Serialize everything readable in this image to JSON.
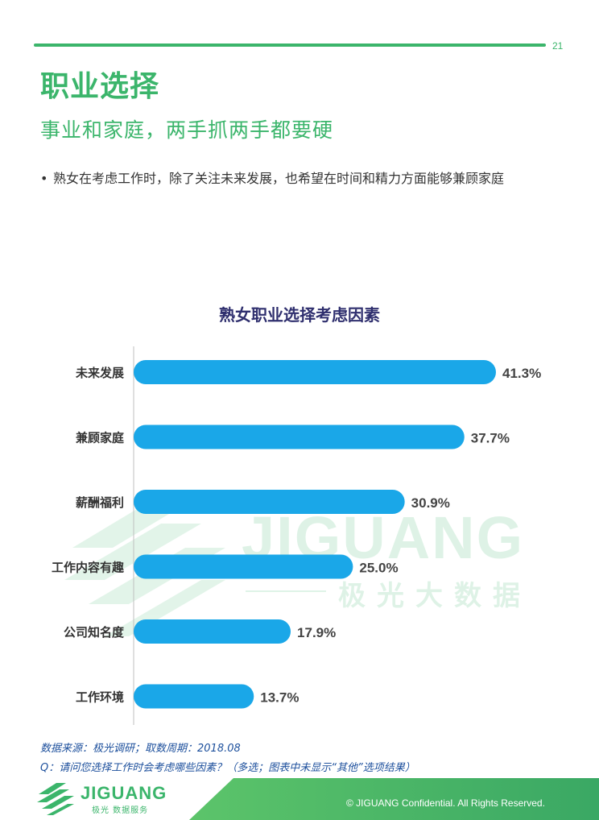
{
  "page": {
    "number": "21",
    "title": "职业选择",
    "subtitle": "事业和家庭，两手抓两手都要硬",
    "bullet": "熟女在考虑工作时，除了关注未来发展，也希望在时间和精力方面能够兼顾家庭"
  },
  "watermark": {
    "brand": "JIGUANG",
    "sub": "极光大数据"
  },
  "chart_data": {
    "type": "bar",
    "orientation": "horizontal",
    "title": "熟女职业选择考虑因素",
    "categories": [
      "未来发展",
      "兼顾家庭",
      "薪酬福利",
      "工作内容有趣",
      "公司知名度",
      "工作环境"
    ],
    "values": [
      41.3,
      37.7,
      30.9,
      25.0,
      17.9,
      13.7
    ],
    "value_labels": [
      "41.3%",
      "37.7%",
      "30.9%",
      "25.0%",
      "17.9%",
      "13.7%"
    ],
    "xlim": [
      0,
      41.3
    ],
    "grid": false,
    "bar_color": "#1aa7e8"
  },
  "notes": {
    "source": "数据来源：极光调研；取数周期：2018.08",
    "question": "Q：请问您选择工作时会考虑哪些因素？（多选；图表中未显示“其他”选项结果）"
  },
  "footer": {
    "brand": "JIGUANG",
    "brand_sub": "极光 数据服务",
    "copyright": "© JIGUANG Confidential. All Rights Reserved."
  },
  "colors": {
    "accent": "#3bb56b",
    "navy": "#2f2f6e",
    "note": "#1c4f9c"
  },
  "icons": [
    "jiguang-logo-icon"
  ]
}
